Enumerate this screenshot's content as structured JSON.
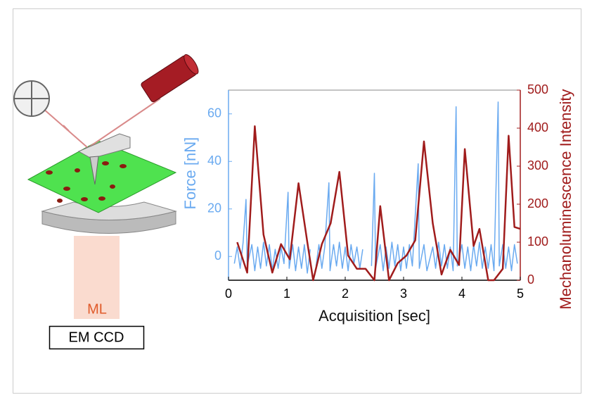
{
  "diagram": {
    "light_label": "ML",
    "detector_label": "EM CCD"
  },
  "chart_data": {
    "type": "line",
    "xlabel": "Acquisition [sec]",
    "ylabel": "Force [nN]",
    "y2label": "Mechanoluminescence Intensity",
    "xlim": [
      0,
      5
    ],
    "xticks": [
      0,
      1,
      2,
      3,
      4,
      5
    ],
    "ylim": [
      -10,
      70
    ],
    "yticks": [
      0,
      20,
      40,
      60
    ],
    "y2lim": [
      0,
      500
    ],
    "y2ticks": [
      0,
      100,
      200,
      300,
      400,
      500
    ],
    "series": [
      {
        "name": "Force [nN]",
        "color": "#6aaaf0",
        "x": [
          0.1,
          0.15,
          0.2,
          0.25,
          0.3,
          0.32,
          0.4,
          0.45,
          0.5,
          0.55,
          0.6,
          0.65,
          0.7,
          0.75,
          0.8,
          0.85,
          0.9,
          0.95,
          1.02,
          1.04,
          1.1,
          1.15,
          1.2,
          1.25,
          1.3,
          1.35,
          1.4,
          1.45,
          1.5,
          1.55,
          1.6,
          1.65,
          1.72,
          1.74,
          1.8,
          1.85,
          1.9,
          1.95,
          2.0,
          2.05,
          2.1,
          2.15,
          2.2,
          2.25,
          2.3,
          2.35,
          2.45,
          2.5,
          2.52,
          2.6,
          2.65,
          2.7,
          2.75,
          2.8,
          2.85,
          2.9,
          2.95,
          3.0,
          3.05,
          3.1,
          3.15,
          3.25,
          3.27,
          3.35,
          3.4,
          3.5,
          3.55,
          3.6,
          3.65,
          3.7,
          3.75,
          3.8,
          3.85,
          3.9,
          3.92,
          4.0,
          4.05,
          4.1,
          4.15,
          4.2,
          4.25,
          4.3,
          4.35,
          4.4,
          4.45,
          4.5,
          4.55,
          4.62,
          4.64,
          4.7,
          4.75,
          4.8,
          4.85,
          4.9,
          4.95
        ],
        "values": [
          -3,
          4,
          -5,
          6,
          24,
          -4,
          5,
          -6,
          4,
          -5,
          6,
          -4,
          5,
          -6,
          3,
          -5,
          4,
          -3,
          27,
          -5,
          5,
          -6,
          4,
          -5,
          5,
          -7,
          3,
          null,
          -4,
          5,
          -5,
          4,
          31,
          -6,
          5,
          -4,
          6,
          -5,
          4,
          -6,
          5,
          -3,
          4,
          -5,
          3,
          null,
          -4,
          35,
          -5,
          5,
          -6,
          4,
          -5,
          6,
          -4,
          5,
          -6,
          4,
          -5,
          5,
          -4,
          39,
          -5,
          5,
          -6,
          4,
          -5,
          6,
          -4,
          5,
          -5,
          4,
          -6,
          63,
          -4,
          5,
          -5,
          4,
          -6,
          5,
          -4,
          6,
          -5,
          4,
          -5,
          5,
          -6,
          65,
          -4,
          5,
          -5,
          4,
          -6,
          5,
          -3
        ]
      },
      {
        "name": "Mechanoluminescence Intensity",
        "color": "#a01c1c",
        "axis": "y2",
        "x": [
          0.15,
          0.32,
          0.45,
          0.6,
          0.75,
          0.9,
          1.05,
          1.2,
          1.35,
          1.45,
          1.6,
          1.75,
          1.9,
          2.05,
          2.2,
          2.35,
          2.5,
          2.6,
          2.75,
          2.9,
          3.05,
          3.2,
          3.35,
          3.5,
          3.65,
          3.8,
          3.95,
          4.05,
          4.2,
          4.3,
          4.45,
          4.55,
          4.7,
          4.8,
          4.9,
          5.0
        ],
        "values": [
          100,
          20,
          405,
          120,
          20,
          95,
          55,
          255,
          100,
          0,
          95,
          150,
          285,
          65,
          30,
          30,
          0,
          195,
          0,
          45,
          65,
          105,
          365,
          150,
          15,
          80,
          40,
          345,
          90,
          135,
          0,
          0,
          30,
          380,
          140,
          135
        ]
      }
    ]
  }
}
